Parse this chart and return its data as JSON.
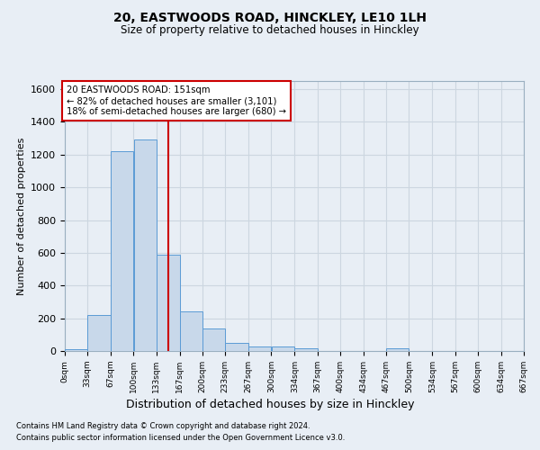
{
  "title1": "20, EASTWOODS ROAD, HINCKLEY, LE10 1LH",
  "title2": "Size of property relative to detached houses in Hinckley",
  "xlabel": "Distribution of detached houses by size in Hinckley",
  "ylabel": "Number of detached properties",
  "footnote1": "Contains HM Land Registry data © Crown copyright and database right 2024.",
  "footnote2": "Contains public sector information licensed under the Open Government Licence v3.0.",
  "bar_edges": [
    0,
    33,
    67,
    100,
    133,
    167,
    200,
    233,
    267,
    300,
    334,
    367,
    400,
    434,
    467,
    500,
    534,
    567,
    600,
    634,
    667
  ],
  "bar_heights": [
    10,
    220,
    1220,
    1290,
    590,
    240,
    135,
    50,
    30,
    25,
    15,
    0,
    0,
    0,
    15,
    0,
    0,
    0,
    0,
    0
  ],
  "bar_color": "#c8d8ea",
  "bar_edge_color": "#5b9bd5",
  "ylim": [
    0,
    1650
  ],
  "yticks": [
    0,
    200,
    400,
    600,
    800,
    1000,
    1200,
    1400,
    1600
  ],
  "xtick_labels": [
    "0sqm",
    "33sqm",
    "67sqm",
    "100sqm",
    "133sqm",
    "167sqm",
    "200sqm",
    "233sqm",
    "267sqm",
    "300sqm",
    "334sqm",
    "367sqm",
    "400sqm",
    "434sqm",
    "467sqm",
    "500sqm",
    "534sqm",
    "567sqm",
    "600sqm",
    "634sqm",
    "667sqm"
  ],
  "property_line_x": 151,
  "annotation_text": "20 EASTWOODS ROAD: 151sqm\n← 82% of detached houses are smaller (3,101)\n18% of semi-detached houses are larger (680) →",
  "annotation_box_color": "#ffffff",
  "annotation_box_edge": "#cc0000",
  "line_color": "#cc0000",
  "grid_color": "#ccd6e0",
  "bg_color": "#e8eef5"
}
